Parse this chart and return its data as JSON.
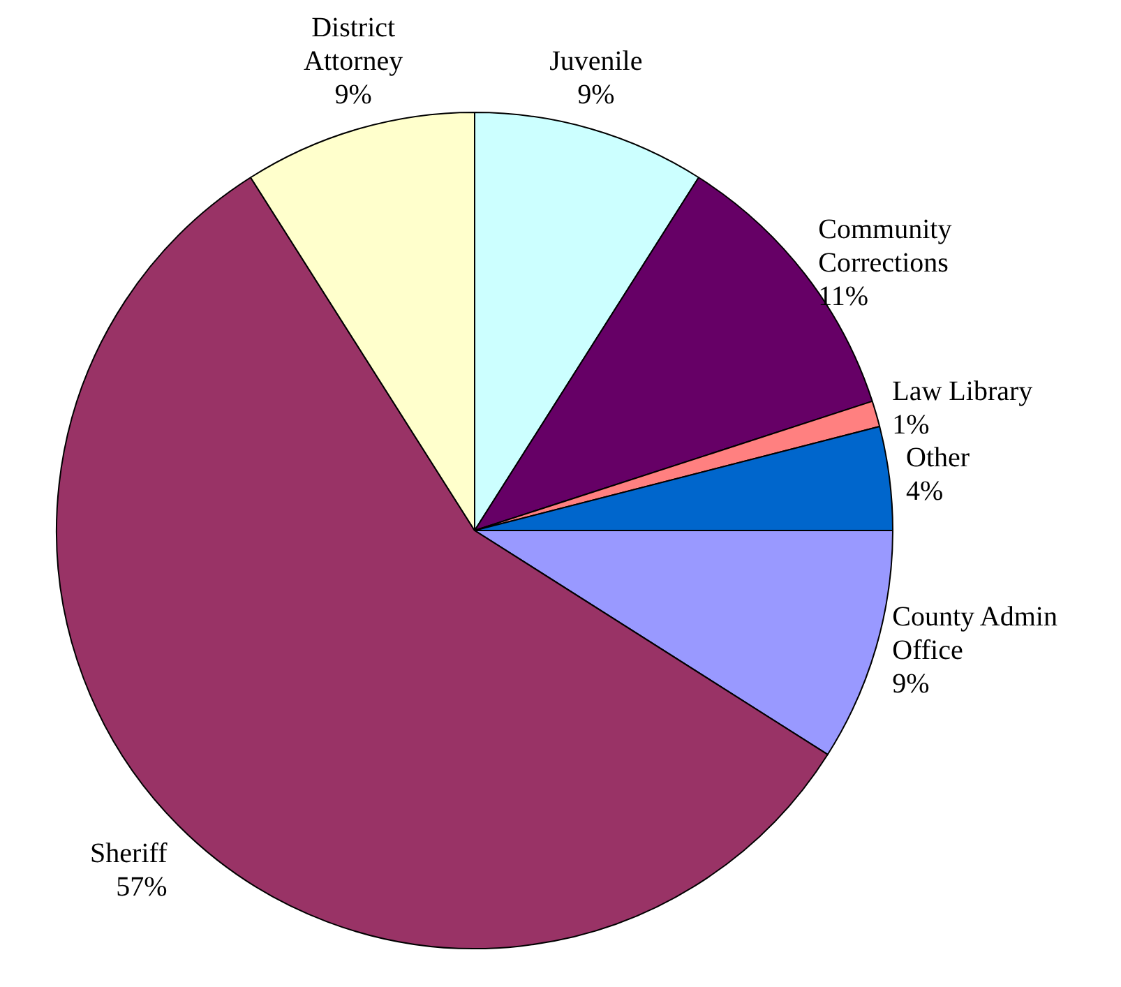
{
  "chart_data": {
    "type": "pie",
    "categories": [
      "Juvenile",
      "Community Corrections",
      "Law Library",
      "Other",
      "County Admin Office",
      "Sheriff",
      "District Attorney"
    ],
    "values": [
      9,
      11,
      1,
      4,
      9,
      57,
      9
    ],
    "value_labels": [
      "9%",
      "11%",
      "1%",
      "4%",
      "9%",
      "57%",
      "9%"
    ],
    "colors": [
      "#ccffff",
      "#660066",
      "#ff8080",
      "#0066cc",
      "#9999ff",
      "#993366",
      "#ffffcc"
    ],
    "legend": false
  }
}
